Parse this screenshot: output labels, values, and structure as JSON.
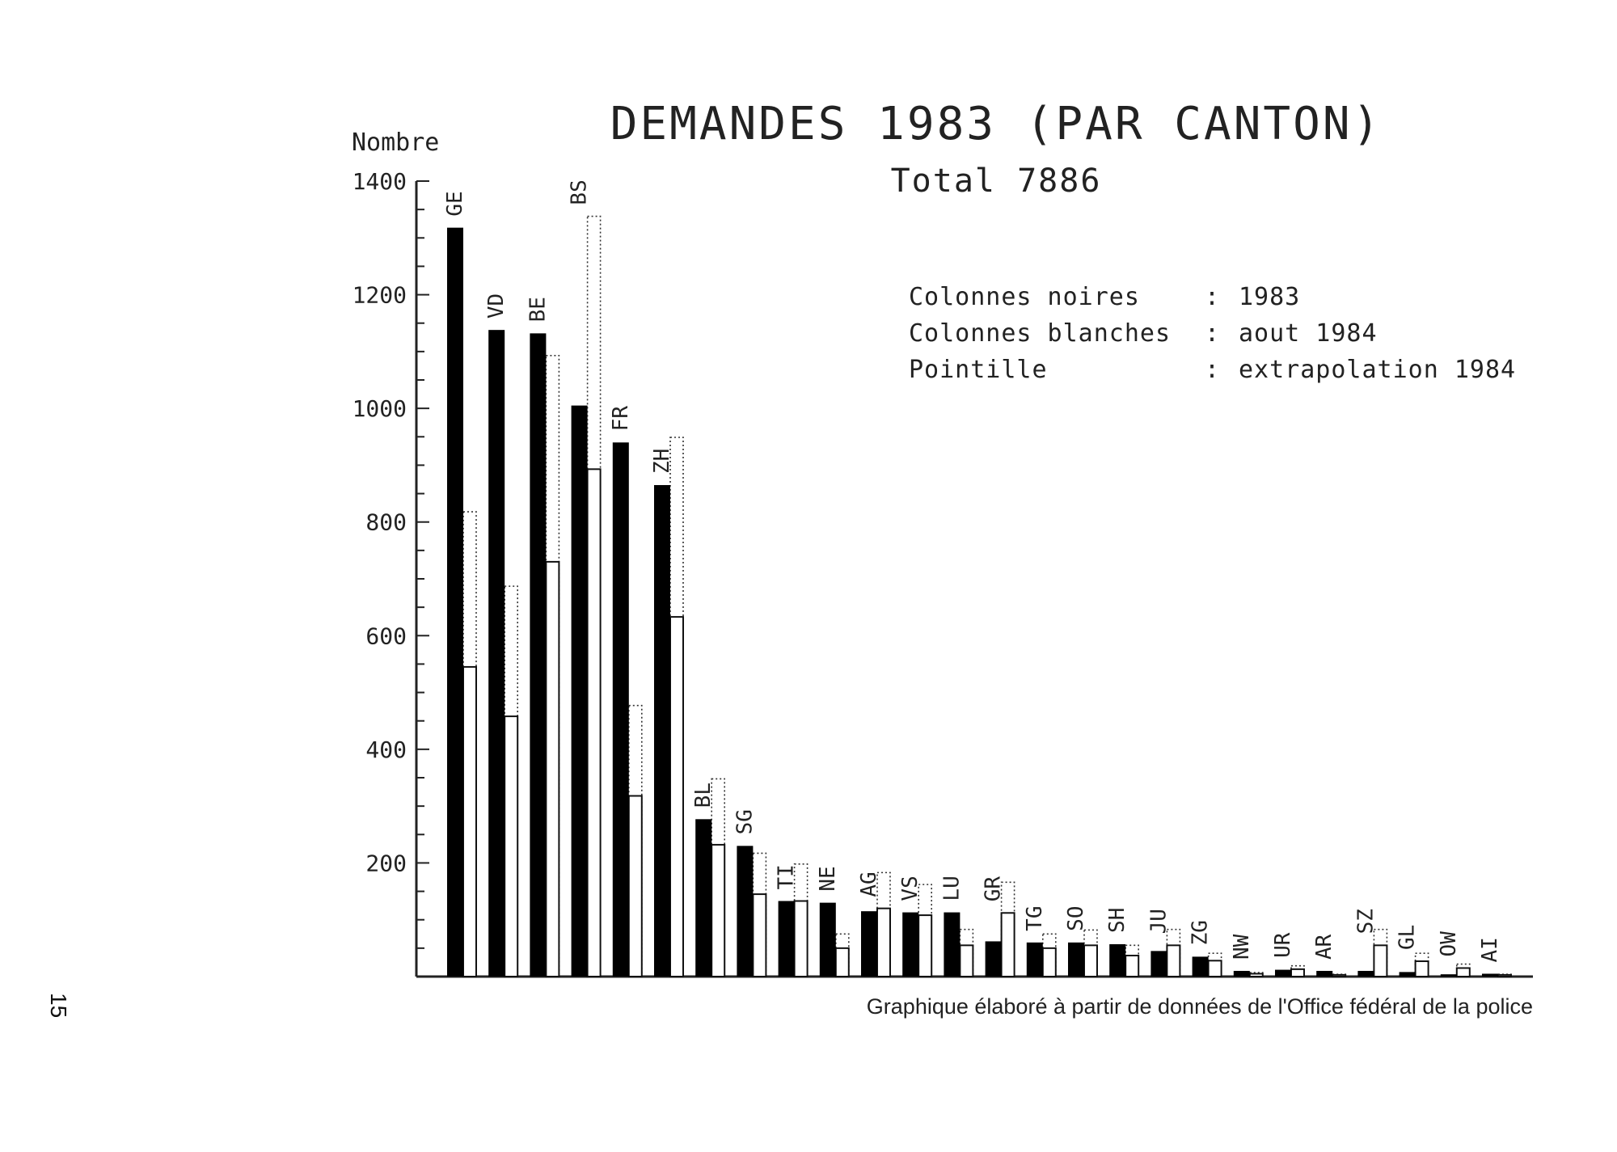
{
  "page": {
    "number": "15"
  },
  "chart_data": {
    "type": "bar",
    "title": "DEMANDES 1983 (PAR CANTON)",
    "subtitle": "Total 7886",
    "ylabel": "Nombre",
    "ylim": [
      0,
      1400
    ],
    "yticks": [
      "200",
      "400",
      "600",
      "800",
      "1000",
      "1200",
      "1400"
    ],
    "grid": false,
    "legend_position": "top-right",
    "legend": [
      {
        "label": "Colonnes noires",
        "sep": ":",
        "value": "1983"
      },
      {
        "label": "Colonnes blanches",
        "sep": ":",
        "value": "aout 1984"
      },
      {
        "label": "Pointille",
        "sep": ":",
        "value": "extrapolation 1984"
      }
    ],
    "source": "Graphique élaboré à partir de données de l'Office fédéral de la police",
    "categories": [
      "GE",
      "VD",
      "BE",
      "BS",
      "FR",
      "ZH",
      "BL",
      "SG",
      "TI",
      "NE",
      "AG",
      "VS",
      "LU",
      "GR",
      "TG",
      "SO",
      "SH",
      "JU",
      "ZG",
      "NW",
      "UR",
      "AR",
      "SZ",
      "GL",
      "OW",
      "AI"
    ],
    "series": [
      {
        "name": "1983",
        "values": [
          1318,
          1138,
          1132,
          1005,
          940,
          865,
          277,
          230,
          133,
          130,
          115,
          113,
          113,
          62,
          60,
          60,
          57,
          45,
          35,
          10,
          12,
          10,
          10,
          8,
          4,
          5
        ]
      },
      {
        "name": "aout 1984",
        "values": [
          545,
          458,
          730,
          893,
          318,
          633,
          232,
          145,
          133,
          50,
          120,
          108,
          55,
          112,
          50,
          55,
          37,
          55,
          28,
          5,
          13,
          3,
          55,
          27,
          15,
          3
        ]
      },
      {
        "name": "extrapolation 1984",
        "values": [
          818,
          687,
          1093,
          1338,
          477,
          949,
          348,
          217,
          198,
          75,
          183,
          162,
          83,
          166,
          75,
          82,
          55,
          83,
          41,
          7,
          19,
          4,
          83,
          41,
          22,
          4
        ]
      }
    ],
    "colors": {
      "bar_1983": "#000000",
      "bar_aout": "#ffffff",
      "outline": "#111111",
      "axis": "#222222"
    }
  }
}
